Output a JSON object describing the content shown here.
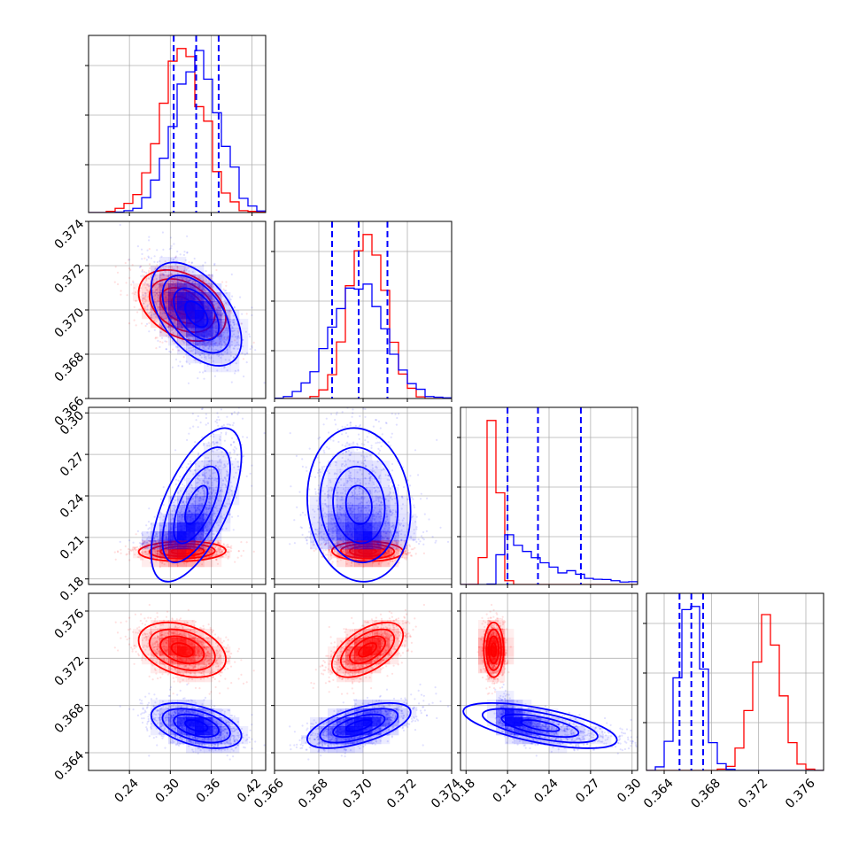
{
  "chart_data": {
    "type": "corner",
    "parameters": 4,
    "grid": true,
    "colors": {
      "series_a": "#ff0000",
      "series_b": "#0000ff",
      "quantile_lines": "#0000ff"
    },
    "axes": [
      {
        "lim": [
          0.18,
          0.44
        ],
        "ticks": [
          0.24,
          0.3,
          0.36,
          0.42
        ],
        "tick_labels": [
          "0.24",
          "0.30",
          "0.36",
          "0.42"
        ]
      },
      {
        "lim": [
          0.366,
          0.374
        ],
        "ticks": [
          0.366,
          0.368,
          0.37,
          0.372,
          0.374
        ],
        "tick_labels": [
          "0.366",
          "0.368",
          "0.370",
          "0.372",
          "0.374"
        ]
      },
      {
        "lim": [
          0.176,
          0.304
        ],
        "ticks": [
          0.18,
          0.21,
          0.24,
          0.27,
          0.3
        ],
        "tick_labels": [
          "0.18",
          "0.21",
          "0.24",
          "0.27",
          "0.30"
        ]
      },
      {
        "lim": [
          0.3625,
          0.3775
        ],
        "ticks": [
          0.364,
          0.368,
          0.372,
          0.376
        ],
        "tick_labels": [
          "0.364",
          "0.368",
          "0.372",
          "0.376"
        ]
      }
    ],
    "series": [
      {
        "color": "#ff0000",
        "means": [
          0.317,
          0.3702,
          0.2,
          0.3727
        ],
        "sds": [
          0.032,
          0.0008,
          0.0035,
          0.00115
        ],
        "correlations": [
          [
            0,
            1,
            -0.35
          ],
          [
            0,
            2,
            0.05
          ],
          [
            0,
            3,
            -0.35
          ],
          [
            1,
            2,
            -0.05
          ],
          [
            1,
            3,
            0.55
          ],
          [
            2,
            3,
            0.0
          ]
        ]
      },
      {
        "color": "#0000ff",
        "means": [
          0.338,
          0.3698,
          0.232,
          0.3663
        ],
        "sds": [
          0.033,
          0.00115,
          0.026,
          0.00095
        ],
        "correlations": [
          [
            0,
            1,
            -0.5
          ],
          [
            0,
            2,
            0.7
          ],
          [
            0,
            3,
            -0.45
          ],
          [
            1,
            2,
            -0.1
          ],
          [
            1,
            3,
            0.6
          ],
          [
            2,
            3,
            -0.7
          ]
        ]
      }
    ],
    "quantiles_series_b": [
      [
        0.305,
        0.338,
        0.371
      ],
      [
        0.3686,
        0.3698,
        0.3711
      ],
      [
        0.21,
        0.232,
        0.263
      ],
      [
        0.3653,
        0.3663,
        0.3673
      ]
    ]
  }
}
